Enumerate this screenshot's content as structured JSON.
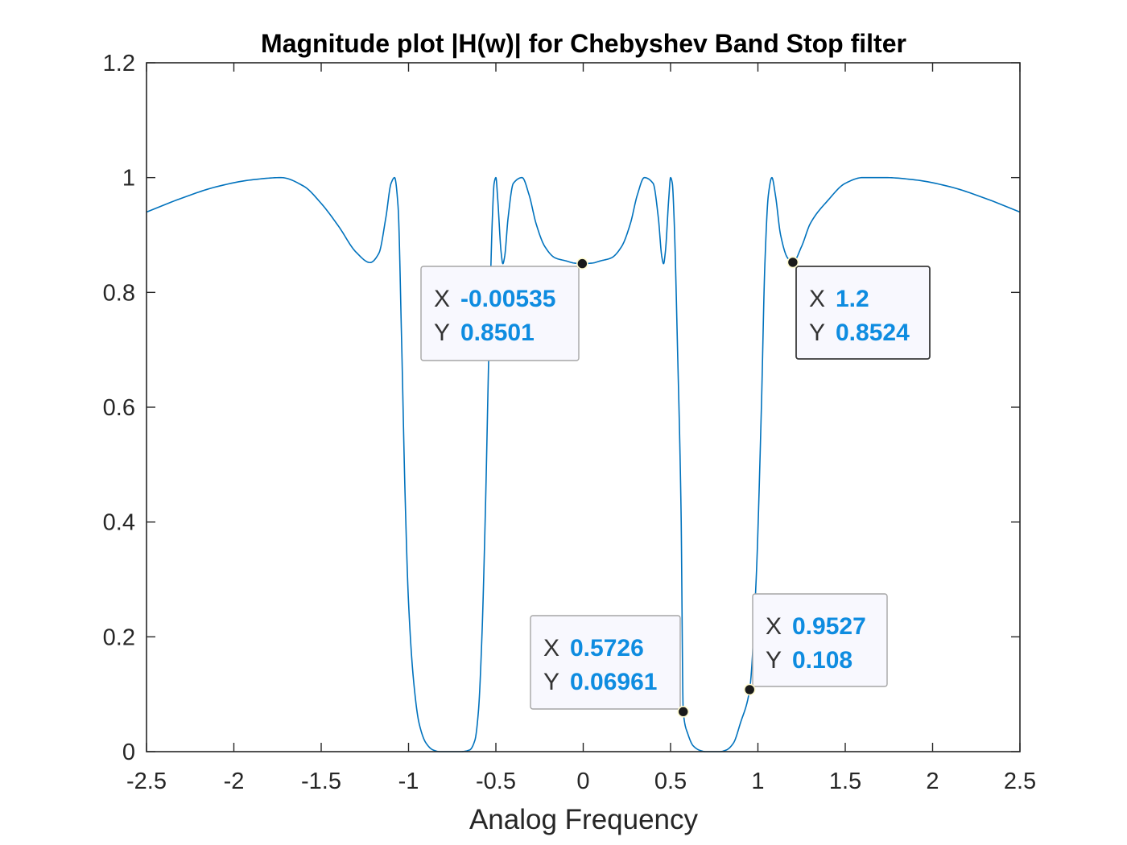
{
  "chart_data": {
    "type": "line",
    "title": "Magnitude plot |H(w)| for Chebyshev Band Stop filter",
    "xlabel": "Analog Frequency",
    "ylabel": "",
    "xlim": [
      -2.5,
      2.5
    ],
    "ylim": [
      0,
      1.2
    ],
    "xticks": [
      "-2.5",
      "-2",
      "-1.5",
      "-1",
      "-0.5",
      "0",
      "0.5",
      "1",
      "1.5",
      "2",
      "2.5"
    ],
    "yticks": [
      "0",
      "0.2",
      "0.4",
      "0.6",
      "0.8",
      "1",
      "1.2"
    ],
    "grid": false,
    "series": [
      {
        "color": "#0072BD",
        "x": [
          -2.5,
          -2.3,
          -2.1,
          -1.9,
          -1.73,
          -1.6,
          -1.5,
          -1.4,
          -1.3,
          -1.22,
          -1.17,
          -1.13,
          -1.1,
          -1.08,
          -1.06,
          -1.04,
          -1.02,
          -1.0,
          -0.97,
          -0.94,
          -0.9,
          -0.86,
          -0.82,
          -0.78,
          -0.7,
          -0.65,
          -0.62,
          -0.6,
          -0.58,
          -0.56,
          -0.54,
          -0.52,
          -0.51,
          -0.5,
          -0.49,
          -0.47,
          -0.46,
          -0.45,
          -0.43,
          -0.4,
          -0.35,
          -0.31,
          -0.27,
          -0.22,
          -0.16,
          -0.1,
          -0.05,
          -0.00535,
          0.05,
          0.1,
          0.16,
          0.22,
          0.27,
          0.31,
          0.35,
          0.4,
          0.43,
          0.45,
          0.46,
          0.47,
          0.49,
          0.5,
          0.51,
          0.52,
          0.54,
          0.56,
          0.5726,
          0.6,
          0.63,
          0.67,
          0.7,
          0.78,
          0.82,
          0.86,
          0.9,
          0.9527,
          0.99,
          1.02,
          1.04,
          1.06,
          1.08,
          1.1,
          1.13,
          1.17,
          1.2,
          1.25,
          1.3,
          1.4,
          1.5,
          1.6,
          1.73,
          1.9,
          2.1,
          2.3,
          2.5
        ],
        "y": [
          0.94,
          0.964,
          0.984,
          0.996,
          1.0,
          0.985,
          0.955,
          0.915,
          0.87,
          0.852,
          0.868,
          0.93,
          0.99,
          1.0,
          0.95,
          0.72,
          0.45,
          0.26,
          0.12,
          0.05,
          0.015,
          0.003,
          0.0,
          0.0,
          0.0,
          0.003,
          0.02,
          0.07,
          0.2,
          0.42,
          0.7,
          0.93,
          0.99,
          1.0,
          0.965,
          0.87,
          0.85,
          0.862,
          0.93,
          0.99,
          1.0,
          0.97,
          0.92,
          0.88,
          0.86,
          0.855,
          0.851,
          0.8501,
          0.851,
          0.855,
          0.86,
          0.88,
          0.92,
          0.97,
          1.0,
          0.99,
          0.93,
          0.862,
          0.85,
          0.87,
          0.965,
          1.0,
          0.99,
          0.93,
          0.7,
          0.42,
          0.06961,
          0.03,
          0.01,
          0.002,
          0.0,
          0.0,
          0.003,
          0.015,
          0.05,
          0.108,
          0.3,
          0.6,
          0.85,
          0.97,
          1.0,
          0.97,
          0.9,
          0.86,
          0.8524,
          0.88,
          0.92,
          0.96,
          0.99,
          1.0,
          1.0,
          0.996,
          0.984,
          0.964,
          0.94
        ]
      }
    ],
    "datatips": [
      {
        "x_key": "X",
        "x_value": "-0.00535",
        "y_key": "Y",
        "y_value": "0.8501",
        "x": -0.00535,
        "y": 0.8501,
        "selected": false
      },
      {
        "x_key": "X",
        "x_value": "1.2",
        "y_key": "Y",
        "y_value": "0.8524",
        "x": 1.2,
        "y": 0.8524,
        "selected": true
      },
      {
        "x_key": "X",
        "x_value": "0.5726",
        "y_key": "Y",
        "y_value": "0.06961",
        "x": 0.5726,
        "y": 0.06961,
        "selected": false
      },
      {
        "x_key": "X",
        "x_value": "0.9527",
        "y_key": "Y",
        "y_value": "0.108",
        "x": 0.9527,
        "y": 0.108,
        "selected": false
      }
    ],
    "colors": {
      "line": "#0072BD",
      "datatip_value": "#0E8CE0",
      "datatip_bg": "#F8F8FE",
      "axes": "#262626"
    }
  }
}
